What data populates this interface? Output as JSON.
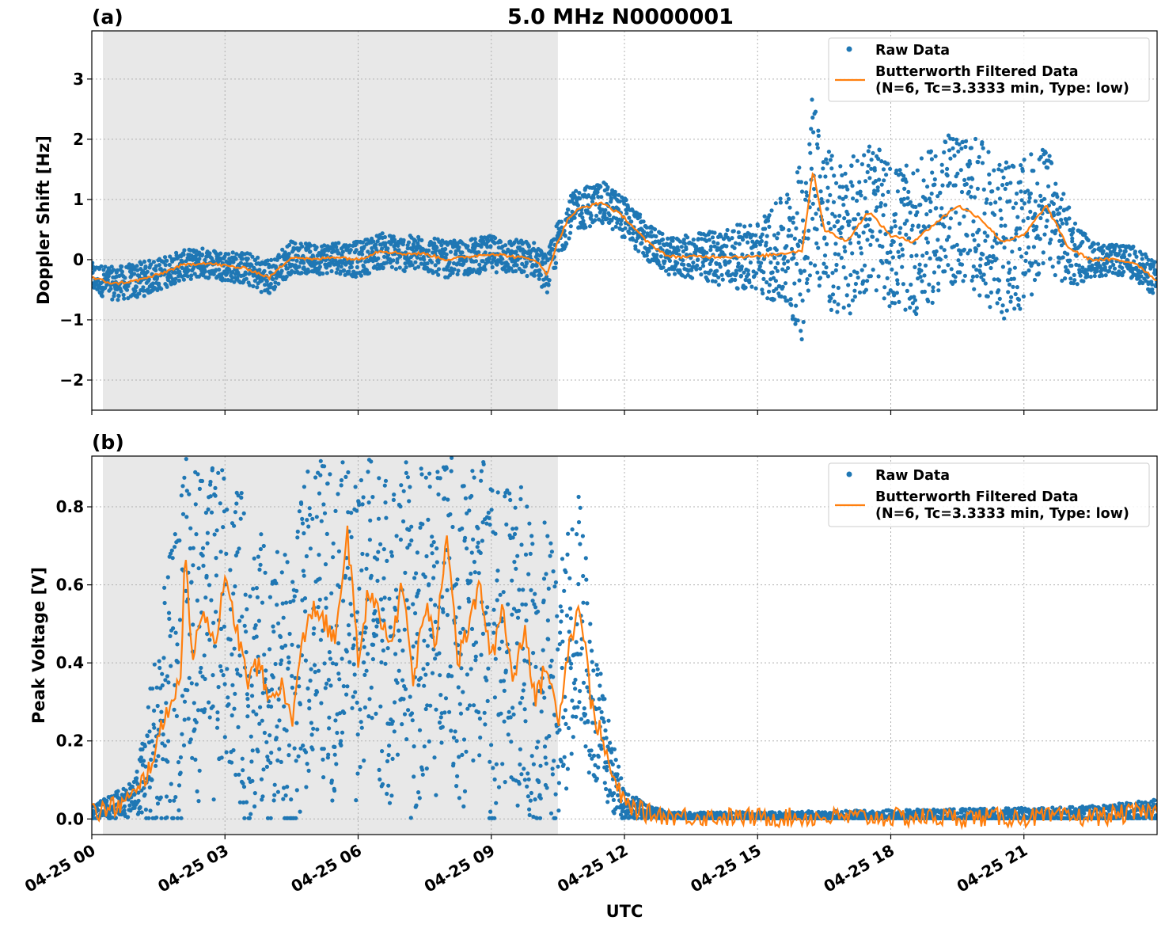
{
  "figure": {
    "title": "5.0 MHz N0000001",
    "xlabel": "UTC",
    "colors": {
      "raw": "#1f77b4",
      "filtered": "#ff7f0e",
      "night_shade": "#e8e8e8"
    }
  },
  "chart_data": [
    {
      "type": "scatter",
      "panel": "(a)",
      "ylabel": "Doppler Shift [Hz]",
      "ylim": [
        -2.5,
        3.8
      ],
      "yticks": [
        -2,
        -1,
        0,
        1,
        2,
        3
      ],
      "ytick_labels": [
        "−2",
        "−1",
        "0",
        "1",
        "2",
        "3"
      ],
      "xlim_hours": [
        0,
        24
      ],
      "shaded_region_hours": [
        0.25,
        10.5
      ],
      "grid": true,
      "legend_placement": "top-right",
      "legend": [
        "Raw Data",
        "Butterworth Filtered Data",
        "(N=6, Tc=3.3333 min, Type: low)"
      ],
      "filtered_series": {
        "x": [
          0,
          0.5,
          1,
          1.5,
          2,
          2.5,
          3,
          3.5,
          4,
          4.5,
          5,
          5.5,
          6,
          6.5,
          7,
          7.5,
          8,
          8.5,
          9,
          9.5,
          10,
          10.25,
          10.5,
          10.75,
          11,
          11.5,
          12,
          12.5,
          13,
          13.5,
          14,
          14.5,
          15,
          15.5,
          16,
          16.25,
          16.5,
          17,
          17.5,
          18,
          18.5,
          19,
          19.5,
          20,
          20.5,
          21,
          21.5,
          22,
          22.5,
          23,
          23.5,
          24
        ],
        "y": [
          -0.3,
          -0.4,
          -0.35,
          -0.25,
          -0.1,
          -0.05,
          -0.1,
          -0.15,
          -0.3,
          0.05,
          0.0,
          0.05,
          0.0,
          0.15,
          0.1,
          0.1,
          0.0,
          0.05,
          0.1,
          0.05,
          0.0,
          -0.25,
          0.3,
          0.7,
          0.85,
          0.95,
          0.7,
          0.3,
          0.05,
          0.05,
          0.05,
          0.05,
          0.05,
          0.1,
          0.15,
          1.5,
          0.5,
          0.3,
          0.8,
          0.4,
          0.3,
          0.6,
          0.9,
          0.7,
          0.3,
          0.4,
          0.9,
          0.2,
          0.0,
          0.0,
          -0.05,
          -0.35
        ]
      },
      "raw_spread": {
        "x": [
          0,
          1,
          2,
          3,
          4,
          5,
          6,
          7,
          8,
          9,
          10,
          10.5,
          11,
          12,
          13,
          14,
          15,
          15.5,
          16,
          16.5,
          17,
          18,
          19,
          20,
          21,
          22,
          22.5,
          23,
          24
        ],
        "y": [
          0.25,
          0.3,
          0.25,
          0.25,
          0.3,
          0.25,
          0.3,
          0.3,
          0.3,
          0.3,
          0.3,
          0.35,
          0.35,
          0.35,
          0.3,
          0.45,
          0.6,
          0.9,
          1.5,
          1.4,
          1.3,
          1.2,
          1.3,
          1.3,
          1.3,
          0.7,
          0.3,
          0.25,
          0.3
        ]
      }
    },
    {
      "type": "scatter",
      "panel": "(b)",
      "ylabel": "Peak Voltage [V]",
      "ylim": [
        -0.04,
        0.93
      ],
      "yticks": [
        0.0,
        0.2,
        0.4,
        0.6,
        0.8
      ],
      "ytick_labels": [
        "0.0",
        "0.2",
        "0.4",
        "0.6",
        "0.8"
      ],
      "xlim_hours": [
        0,
        24
      ],
      "xticks_hours": [
        0,
        3,
        6,
        9,
        12,
        15,
        18,
        21
      ],
      "xtick_labels": [
        "04-25 00",
        "04-25 03",
        "04-25 06",
        "04-25 09",
        "04-25 12",
        "04-25 15",
        "04-25 18",
        "04-25 21"
      ],
      "shaded_region_hours": [
        0.25,
        10.5
      ],
      "grid": true,
      "legend_placement": "top-right",
      "legend": [
        "Raw Data",
        "Butterworth Filtered Data",
        "(N=6, Tc=3.3333 min, Type: low)"
      ],
      "filtered_series": {
        "x": [
          0,
          0.5,
          1,
          1.25,
          1.5,
          1.75,
          2,
          2.1,
          2.25,
          2.5,
          2.75,
          3,
          3.25,
          3.5,
          3.75,
          4,
          4.25,
          4.5,
          4.75,
          5,
          5.25,
          5.5,
          5.75,
          6,
          6.25,
          6.5,
          6.75,
          7,
          7.25,
          7.5,
          7.75,
          8,
          8.25,
          8.5,
          8.75,
          9,
          9.25,
          9.5,
          9.75,
          10,
          10.25,
          10.5,
          10.75,
          11,
          11.25,
          11.5,
          11.75,
          12,
          12.5,
          13,
          14,
          15,
          16,
          17,
          18,
          19,
          20,
          21,
          22,
          22.5,
          23,
          23.5,
          24
        ],
        "y": [
          0.015,
          0.03,
          0.06,
          0.12,
          0.2,
          0.3,
          0.35,
          0.72,
          0.4,
          0.55,
          0.45,
          0.6,
          0.5,
          0.35,
          0.4,
          0.3,
          0.35,
          0.25,
          0.45,
          0.55,
          0.5,
          0.45,
          0.75,
          0.4,
          0.6,
          0.5,
          0.45,
          0.6,
          0.35,
          0.55,
          0.45,
          0.75,
          0.4,
          0.5,
          0.6,
          0.4,
          0.55,
          0.35,
          0.5,
          0.3,
          0.4,
          0.25,
          0.45,
          0.55,
          0.3,
          0.2,
          0.1,
          0.04,
          0.015,
          0.008,
          0.005,
          0.004,
          0.004,
          0.004,
          0.004,
          0.004,
          0.004,
          0.004,
          0.004,
          0.006,
          0.01,
          0.015,
          0.02
        ]
      },
      "raw_spread": {
        "x": [
          0,
          1,
          1.5,
          2,
          3,
          4,
          5,
          6,
          7,
          8,
          9,
          10,
          10.5,
          11,
          11.5,
          12,
          12.5,
          13,
          24
        ],
        "y": [
          0.02,
          0.05,
          0.3,
          0.45,
          0.45,
          0.35,
          0.42,
          0.42,
          0.42,
          0.42,
          0.45,
          0.4,
          0.35,
          0.3,
          0.15,
          0.04,
          0.02,
          0.01,
          0.03
        ]
      }
    }
  ]
}
